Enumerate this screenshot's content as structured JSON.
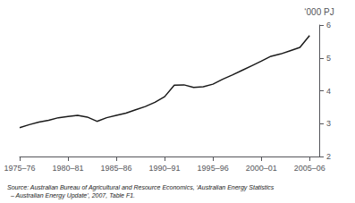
{
  "chart_data": {
    "type": "line",
    "ylabel": "‘000 PJ",
    "source": [
      "Source: Australian Bureau of Agricultural and Resource Economics, ‘Australian Energy Statistics",
      "  – Australian Energy Update’, 2007, Table F1."
    ],
    "x": [
      1975,
      1976,
      1977,
      1978,
      1979,
      1980,
      1981,
      1982,
      1983,
      1984,
      1985,
      1986,
      1987,
      1988,
      1989,
      1990,
      1991,
      1992,
      1993,
      1994,
      1995,
      1996,
      1997,
      1998,
      1999,
      2000,
      2001,
      2002,
      2003,
      2004,
      2005
    ],
    "values": [
      2.88,
      2.97,
      3.05,
      3.1,
      3.18,
      3.22,
      3.25,
      3.2,
      3.07,
      3.18,
      3.25,
      3.32,
      3.42,
      3.52,
      3.65,
      3.82,
      4.17,
      4.18,
      4.1,
      4.12,
      4.2,
      4.35,
      4.48,
      4.62,
      4.76,
      4.9,
      5.05,
      5.12,
      5.22,
      5.32,
      5.68
    ],
    "color": "#1a1a1a",
    "xlim": [
      1975,
      2006
    ],
    "xticks": [
      {
        "value": 1975,
        "label": "1975–76"
      },
      {
        "value": 1980,
        "label": "1980–81"
      },
      {
        "value": 1985,
        "label": "1985–86"
      },
      {
        "value": 1990,
        "label": "1990–91"
      },
      {
        "value": 1995,
        "label": "1995–96"
      },
      {
        "value": 2000,
        "label": "2000–01"
      },
      {
        "value": 2005,
        "label": "2005–06"
      }
    ],
    "ylim": [
      2,
      6
    ],
    "yticks": [
      2,
      3,
      4,
      5,
      6
    ],
    "grid": false
  }
}
